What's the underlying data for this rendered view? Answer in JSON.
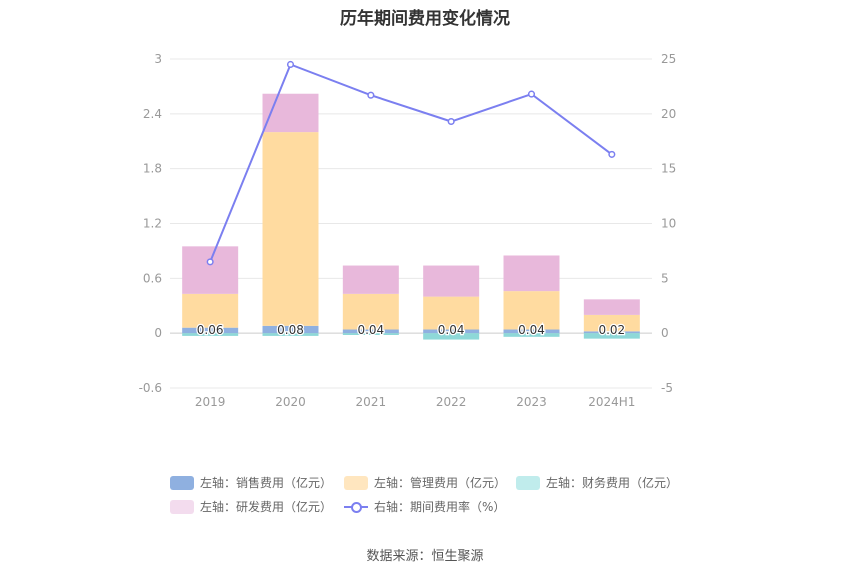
{
  "chart_data": {
    "type": "bar",
    "title": "历年期间费用变化情况",
    "categories": [
      "2019",
      "2020",
      "2021",
      "2022",
      "2023",
      "2024H1"
    ],
    "left_axis": {
      "ylim": [
        -0.6,
        3
      ],
      "ticks": [
        "-0.6",
        "0",
        "0.6",
        "1.2",
        "1.8",
        "2.4",
        "3"
      ]
    },
    "right_axis": {
      "ylim": [
        -5,
        25
      ],
      "ticks": [
        "-5",
        "0",
        "5",
        "10",
        "15",
        "20",
        "25"
      ]
    },
    "series": [
      {
        "name": "左轴：销售费用（亿元）",
        "axis": "left",
        "color": "#8fb0e0",
        "values": [
          0.06,
          0.08,
          0.04,
          0.04,
          0.04,
          0.02
        ],
        "labels": [
          "0.06",
          "0.08",
          "0.04",
          "0.04",
          "0.04",
          "0.02"
        ]
      },
      {
        "name": "左轴：管理费用（亿元）",
        "axis": "left",
        "color": "#ffdba0",
        "values": [
          0.37,
          2.12,
          0.39,
          0.36,
          0.42,
          0.18
        ]
      },
      {
        "name": "左轴：财务费用（亿元）",
        "axis": "left",
        "color": "#8ed8d8",
        "values": [
          -0.03,
          -0.03,
          -0.02,
          -0.07,
          -0.04,
          -0.06
        ]
      },
      {
        "name": "左轴：研发费用（亿元）",
        "axis": "left",
        "color": "#e8b8db",
        "values": [
          0.52,
          0.42,
          0.31,
          0.34,
          0.39,
          0.17
        ]
      },
      {
        "name": "右轴：期间费用率（%）",
        "axis": "right",
        "type": "line",
        "color": "#7b7ff0",
        "values": [
          6.5,
          24.5,
          21.7,
          19.3,
          21.8,
          16.3
        ]
      }
    ],
    "source": "数据来源：恒生聚源"
  }
}
